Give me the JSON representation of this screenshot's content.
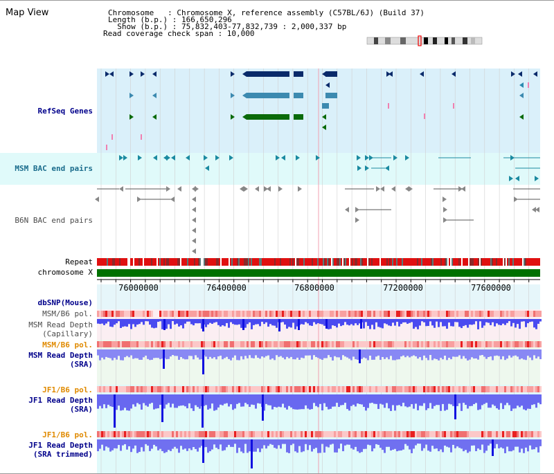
{
  "title": "Map View",
  "info": {
    "chromosome_line": "Chromosome   : Chromosome X, reference assembly (C57BL/6J) (Build 37)",
    "length_line": "Length (b.p.) : 166,650,296",
    "show_line": "  Show (b.p.) : 75,832,403-77,832,739 : 2,000,337 bp",
    "coverage_line": "Read coverage check span : 10,000"
  },
  "tracks": {
    "refseq": "RefSeq Genes",
    "msm_bac": "MSM BAC end pairs",
    "b6n_bac": "B6N BAC end pairs",
    "repeat": "Repeat",
    "chrom": "chromosome X",
    "dbsnp": "dbSNP(Mouse)",
    "msm_b6_pol_1": "MSM/B6 pol.",
    "msm_read_cap_1": "MSM Read Depth",
    "msm_read_cap_2": "(Capillary)",
    "msm_b6_pol_2": "MSM/B6 pol.",
    "msm_read_sra_1": "MSM Read Depth",
    "msm_read_sra_2": "(SRA)",
    "jf1_pol_1": "JF1/B6 pol.",
    "jf1_read_sra_1": "JF1 Read Depth",
    "jf1_read_sra_2": "(SRA)",
    "jf1_pol_2": "JF1/B6 pol.",
    "jf1_trim_1": "JF1 Read Depth",
    "jf1_trim_2": "(SRA trimmed)"
  },
  "axis": {
    "ticks": [
      "76000000",
      "76400000",
      "76800000",
      "77200000",
      "77600000"
    ]
  },
  "colors": {
    "refseq_bg": "#daf0fa",
    "bac_bg": "#e0fafa",
    "depth_blue": "#3333ff",
    "pol_red": "#e83030",
    "chrom_green": "#007000",
    "label_blue": "#00008b",
    "label_orange": "#e08a00"
  }
}
